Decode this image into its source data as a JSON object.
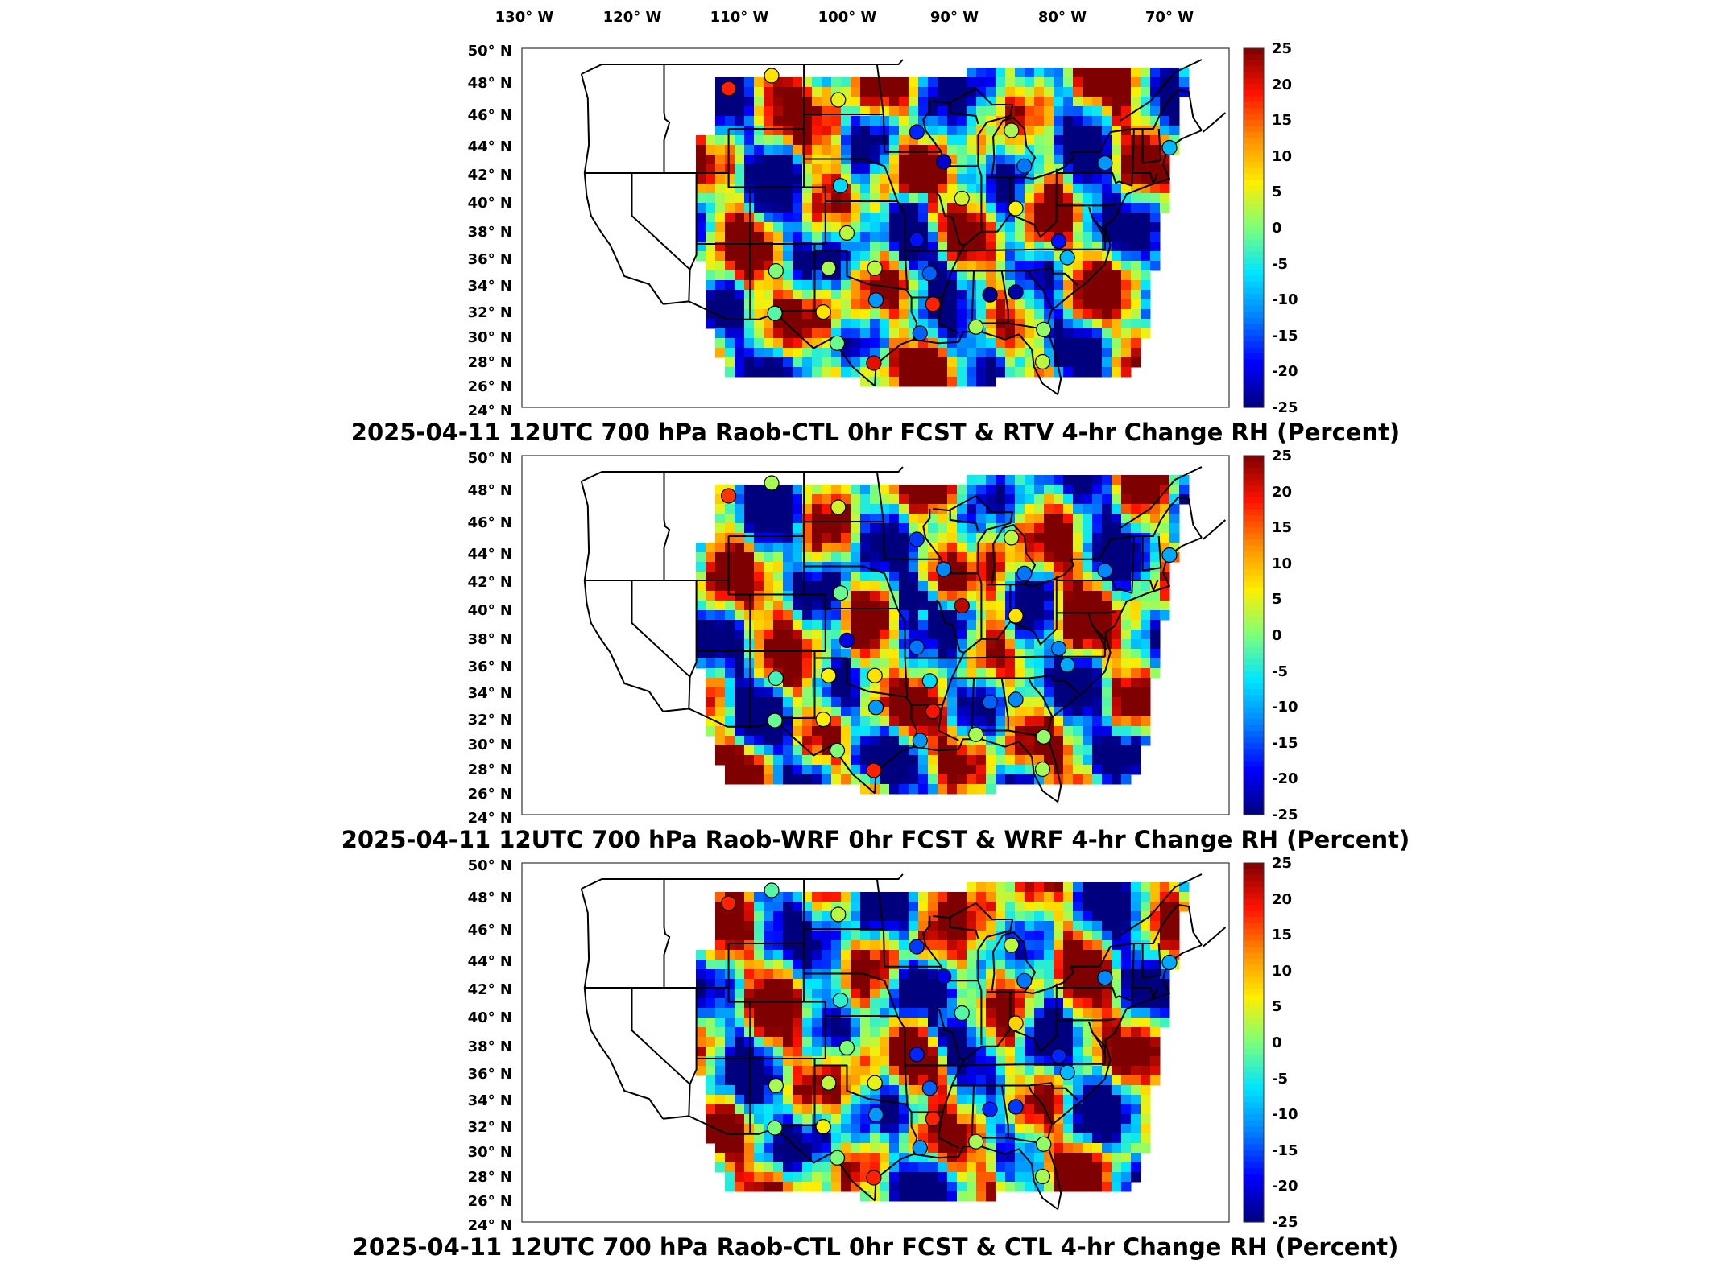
{
  "longitude_ticks": [
    "130° W",
    "120° W",
    "110° W",
    "100° W",
    "90° W",
    "80° W",
    "70° W"
  ],
  "latitude_ticks": [
    "50° N",
    "48° N",
    "46° N",
    "44° N",
    "42° N",
    "40° N",
    "38° N",
    "36° N",
    "34° N",
    "32° N",
    "30° N",
    "28° N",
    "26° N",
    "24° N"
  ],
  "colorbar": {
    "ticks": [
      "25",
      "20",
      "15",
      "10",
      "5",
      "0",
      "-5",
      "-10",
      "-15",
      "-20",
      "-25"
    ],
    "min": -25,
    "max": 25,
    "colors": [
      "#00007f",
      "#0000ff",
      "#0080ff",
      "#00e5ff",
      "#7dff7a",
      "#ffee00",
      "#ff8c00",
      "#ff1200",
      "#7f0000"
    ]
  },
  "panels": [
    {
      "title": "2025-04-11 12UTC 700 hPa Raob-CTL 0hr FCST & RTV 4-hr Change RH (Percent)",
      "seed": 11,
      "stations": [
        {
          "lon": -111.0,
          "lat": 47.5,
          "v": 18
        },
        {
          "lon": -107.0,
          "lat": 48.3,
          "v": 7
        },
        {
          "lon": -100.8,
          "lat": 46.8,
          "v": 5
        },
        {
          "lon": -93.5,
          "lat": 44.8,
          "v": -17
        },
        {
          "lon": -84.7,
          "lat": 44.9,
          "v": 2
        },
        {
          "lon": -91.0,
          "lat": 42.8,
          "v": -21
        },
        {
          "lon": -83.5,
          "lat": 42.5,
          "v": -13
        },
        {
          "lon": -76.0,
          "lat": 42.7,
          "v": -11
        },
        {
          "lon": -70.0,
          "lat": 43.8,
          "v": -9
        },
        {
          "lon": -100.6,
          "lat": 41.1,
          "v": -7
        },
        {
          "lon": -89.3,
          "lat": 40.2,
          "v": 4
        },
        {
          "lon": -84.3,
          "lat": 39.5,
          "v": 6
        },
        {
          "lon": -100.0,
          "lat": 37.8,
          "v": 3
        },
        {
          "lon": -93.5,
          "lat": 37.3,
          "v": -18
        },
        {
          "lon": -80.3,
          "lat": 37.2,
          "v": -18
        },
        {
          "lon": -79.5,
          "lat": 36.0,
          "v": -9
        },
        {
          "lon": -106.6,
          "lat": 35.0,
          "v": 0
        },
        {
          "lon": -101.7,
          "lat": 35.2,
          "v": 2
        },
        {
          "lon": -97.4,
          "lat": 35.2,
          "v": 3
        },
        {
          "lon": -92.3,
          "lat": 34.8,
          "v": -14
        },
        {
          "lon": -86.7,
          "lat": 33.2,
          "v": -24
        },
        {
          "lon": -84.3,
          "lat": 33.4,
          "v": -23
        },
        {
          "lon": -97.3,
          "lat": 32.8,
          "v": -11
        },
        {
          "lon": -92.0,
          "lat": 32.5,
          "v": 18
        },
        {
          "lon": -102.2,
          "lat": 31.9,
          "v": 7
        },
        {
          "lon": -106.7,
          "lat": 31.8,
          "v": -2
        },
        {
          "lon": -88.0,
          "lat": 30.7,
          "v": 2
        },
        {
          "lon": -93.2,
          "lat": 30.2,
          "v": -14
        },
        {
          "lon": -81.7,
          "lat": 30.5,
          "v": 1
        },
        {
          "lon": -100.9,
          "lat": 29.4,
          "v": -1
        },
        {
          "lon": -97.5,
          "lat": 27.8,
          "v": 20
        },
        {
          "lon": -81.8,
          "lat": 27.9,
          "v": 3
        }
      ]
    },
    {
      "title": "2025-04-11 12UTC 700 hPa Raob-WRF 0hr FCST & WRF 4-hr Change RH (Percent)",
      "seed": 23,
      "stations": [
        {
          "lon": -111.0,
          "lat": 47.5,
          "v": 17
        },
        {
          "lon": -107.0,
          "lat": 48.3,
          "v": 2
        },
        {
          "lon": -100.8,
          "lat": 46.8,
          "v": 4
        },
        {
          "lon": -93.5,
          "lat": 44.8,
          "v": -16
        },
        {
          "lon": -84.7,
          "lat": 44.9,
          "v": 3
        },
        {
          "lon": -91.0,
          "lat": 42.8,
          "v": -12
        },
        {
          "lon": -83.5,
          "lat": 42.5,
          "v": -13
        },
        {
          "lon": -76.0,
          "lat": 42.7,
          "v": -12
        },
        {
          "lon": -70.0,
          "lat": 43.8,
          "v": -10
        },
        {
          "lon": -100.6,
          "lat": 41.1,
          "v": -1
        },
        {
          "lon": -89.3,
          "lat": 40.2,
          "v": 22
        },
        {
          "lon": -84.3,
          "lat": 39.5,
          "v": 7
        },
        {
          "lon": -100.0,
          "lat": 37.8,
          "v": -20
        },
        {
          "lon": -93.5,
          "lat": 37.3,
          "v": -13
        },
        {
          "lon": -80.3,
          "lat": 37.2,
          "v": -12
        },
        {
          "lon": -79.5,
          "lat": 36.0,
          "v": -10
        },
        {
          "lon": -106.6,
          "lat": 35.0,
          "v": -3
        },
        {
          "lon": -101.7,
          "lat": 35.2,
          "v": 6
        },
        {
          "lon": -97.4,
          "lat": 35.2,
          "v": 7
        },
        {
          "lon": -92.3,
          "lat": 34.8,
          "v": -7
        },
        {
          "lon": -86.7,
          "lat": 33.2,
          "v": -14
        },
        {
          "lon": -84.3,
          "lat": 33.4,
          "v": -12
        },
        {
          "lon": -97.3,
          "lat": 32.8,
          "v": -11
        },
        {
          "lon": -92.0,
          "lat": 32.5,
          "v": 19
        },
        {
          "lon": -102.2,
          "lat": 31.9,
          "v": 6
        },
        {
          "lon": -106.7,
          "lat": 31.8,
          "v": -1
        },
        {
          "lon": -88.0,
          "lat": 30.7,
          "v": 2
        },
        {
          "lon": -93.2,
          "lat": 30.2,
          "v": -11
        },
        {
          "lon": -81.7,
          "lat": 30.5,
          "v": 1
        },
        {
          "lon": -100.9,
          "lat": 29.4,
          "v": 0
        },
        {
          "lon": -97.5,
          "lat": 27.8,
          "v": 18
        },
        {
          "lon": -81.8,
          "lat": 27.9,
          "v": 2
        }
      ]
    },
    {
      "title": "2025-04-11 12UTC 700 hPa Raob-CTL 0hr FCST & CTL 4-hr Change RH (Percent)",
      "seed": 37,
      "stations": [
        {
          "lon": -111.0,
          "lat": 47.5,
          "v": 18
        },
        {
          "lon": -107.0,
          "lat": 48.3,
          "v": -2
        },
        {
          "lon": -100.8,
          "lat": 46.8,
          "v": 3
        },
        {
          "lon": -93.5,
          "lat": 44.8,
          "v": -16
        },
        {
          "lon": -84.7,
          "lat": 44.9,
          "v": 3
        },
        {
          "lon": -91.0,
          "lat": 42.8,
          "v": -20
        },
        {
          "lon": -83.5,
          "lat": 42.5,
          "v": -13
        },
        {
          "lon": -76.0,
          "lat": 42.7,
          "v": -12
        },
        {
          "lon": -70.0,
          "lat": 43.8,
          "v": -10
        },
        {
          "lon": -100.6,
          "lat": 41.1,
          "v": -4
        },
        {
          "lon": -89.3,
          "lat": 40.2,
          "v": -2
        },
        {
          "lon": -84.3,
          "lat": 39.5,
          "v": 8
        },
        {
          "lon": -100.0,
          "lat": 37.8,
          "v": 0
        },
        {
          "lon": -93.5,
          "lat": 37.3,
          "v": -17
        },
        {
          "lon": -80.3,
          "lat": 37.2,
          "v": -17
        },
        {
          "lon": -79.5,
          "lat": 36.0,
          "v": -9
        },
        {
          "lon": -106.6,
          "lat": 35.0,
          "v": 2
        },
        {
          "lon": -101.7,
          "lat": 35.2,
          "v": 3
        },
        {
          "lon": -97.4,
          "lat": 35.2,
          "v": 5
        },
        {
          "lon": -92.3,
          "lat": 34.8,
          "v": -14
        },
        {
          "lon": -86.7,
          "lat": 33.2,
          "v": -17
        },
        {
          "lon": -84.3,
          "lat": 33.4,
          "v": -16
        },
        {
          "lon": -97.3,
          "lat": 32.8,
          "v": -11
        },
        {
          "lon": -92.0,
          "lat": 32.5,
          "v": 18
        },
        {
          "lon": -102.2,
          "lat": 31.9,
          "v": 6
        },
        {
          "lon": -106.7,
          "lat": 31.8,
          "v": 0
        },
        {
          "lon": -88.0,
          "lat": 30.7,
          "v": 2
        },
        {
          "lon": -93.2,
          "lat": 30.2,
          "v": -11
        },
        {
          "lon": -81.7,
          "lat": 30.5,
          "v": 1
        },
        {
          "lon": -100.9,
          "lat": 29.4,
          "v": 0
        },
        {
          "lon": -97.5,
          "lat": 27.8,
          "v": 18
        },
        {
          "lon": -81.8,
          "lat": 27.9,
          "v": 2
        }
      ]
    }
  ]
}
